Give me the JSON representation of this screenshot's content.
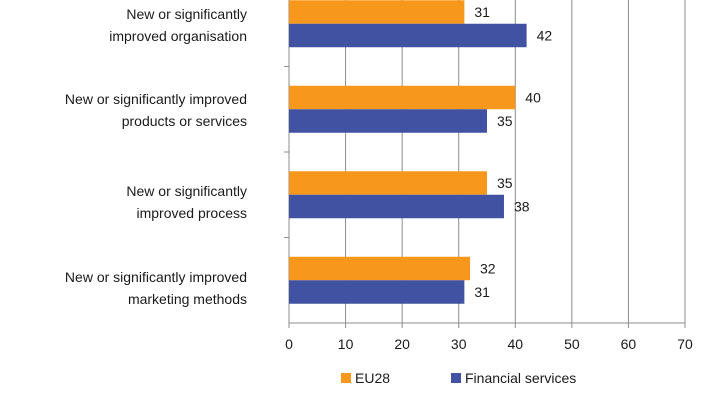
{
  "chart_data": {
    "type": "bar",
    "orientation": "horizontal",
    "title": "",
    "xlabel": "",
    "ylabel": "",
    "categories": [
      "New or significantly\nimproved organisation",
      "New or significantly improved\nproducts or services",
      "New or significantly\nimproved process",
      "New or significantly improved\nmarketing methods"
    ],
    "series": [
      {
        "name": "EU28",
        "color": "#F7981D",
        "values": [
          31,
          40,
          35,
          32
        ]
      },
      {
        "name": "Financial services",
        "color": "#4152A2",
        "values": [
          42,
          35,
          38,
          31
        ]
      }
    ],
    "xlim": [
      0,
      70
    ],
    "xticks": [
      "0",
      "10",
      "20",
      "30",
      "40",
      "50",
      "60",
      "70"
    ],
    "grid": true,
    "legend": "bottom",
    "data_labels": true
  }
}
